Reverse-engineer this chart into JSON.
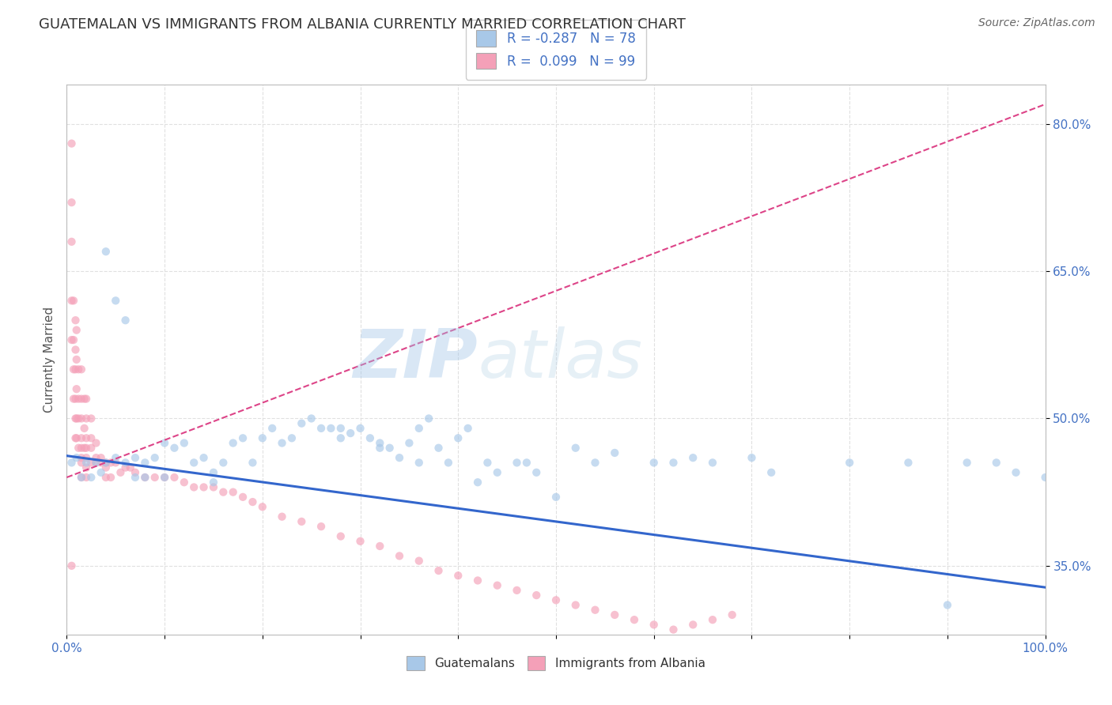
{
  "title": "GUATEMALAN VS IMMIGRANTS FROM ALBANIA CURRENTLY MARRIED CORRELATION CHART",
  "source": "Source: ZipAtlas.com",
  "ylabel": "Currently Married",
  "watermark": "ZIPatlas",
  "xlim": [
    0.0,
    1.0
  ],
  "ylim": [
    0.28,
    0.84
  ],
  "xticks": [
    0.0,
    0.1,
    0.2,
    0.3,
    0.4,
    0.5,
    0.6,
    0.7,
    0.8,
    0.9,
    1.0
  ],
  "xticklabels": [
    "0.0%",
    "",
    "",
    "",
    "",
    "",
    "",
    "",
    "",
    "",
    "100.0%"
  ],
  "ytick_positions": [
    0.35,
    0.5,
    0.65,
    0.8
  ],
  "ytick_labels": [
    "35.0%",
    "50.0%",
    "65.0%",
    "80.0%"
  ],
  "blue_color": "#a8c8e8",
  "pink_color": "#f4a0b8",
  "blue_line_color": "#3366cc",
  "pink_line_color": "#dd4488",
  "blue_scatter_x": [
    0.005,
    0.01,
    0.015,
    0.02,
    0.025,
    0.03,
    0.035,
    0.04,
    0.04,
    0.05,
    0.05,
    0.06,
    0.06,
    0.07,
    0.07,
    0.08,
    0.08,
    0.09,
    0.1,
    0.1,
    0.11,
    0.12,
    0.13,
    0.14,
    0.15,
    0.15,
    0.16,
    0.17,
    0.18,
    0.19,
    0.2,
    0.21,
    0.22,
    0.23,
    0.24,
    0.25,
    0.26,
    0.27,
    0.28,
    0.29,
    0.3,
    0.31,
    0.32,
    0.33,
    0.34,
    0.35,
    0.36,
    0.37,
    0.38,
    0.39,
    0.4,
    0.41,
    0.42,
    0.43,
    0.44,
    0.46,
    0.47,
    0.48,
    0.5,
    0.52,
    0.54,
    0.56,
    0.6,
    0.62,
    0.64,
    0.66,
    0.7,
    0.72,
    0.8,
    0.86,
    0.9,
    0.92,
    0.95,
    0.97,
    1.0,
    0.28,
    0.32,
    0.36
  ],
  "blue_scatter_y": [
    0.455,
    0.46,
    0.44,
    0.455,
    0.44,
    0.455,
    0.445,
    0.67,
    0.455,
    0.62,
    0.46,
    0.6,
    0.455,
    0.46,
    0.44,
    0.455,
    0.44,
    0.46,
    0.475,
    0.44,
    0.47,
    0.475,
    0.455,
    0.46,
    0.445,
    0.435,
    0.455,
    0.475,
    0.48,
    0.455,
    0.48,
    0.49,
    0.475,
    0.48,
    0.495,
    0.5,
    0.49,
    0.49,
    0.49,
    0.485,
    0.49,
    0.48,
    0.475,
    0.47,
    0.46,
    0.475,
    0.49,
    0.5,
    0.47,
    0.455,
    0.48,
    0.49,
    0.435,
    0.455,
    0.445,
    0.455,
    0.455,
    0.445,
    0.42,
    0.47,
    0.455,
    0.465,
    0.455,
    0.455,
    0.46,
    0.455,
    0.46,
    0.445,
    0.455,
    0.455,
    0.31,
    0.455,
    0.455,
    0.445,
    0.44,
    0.48,
    0.47,
    0.455
  ],
  "pink_scatter_x": [
    0.005,
    0.005,
    0.005,
    0.005,
    0.005,
    0.007,
    0.007,
    0.007,
    0.007,
    0.009,
    0.009,
    0.009,
    0.009,
    0.009,
    0.009,
    0.01,
    0.01,
    0.01,
    0.01,
    0.01,
    0.012,
    0.012,
    0.012,
    0.012,
    0.015,
    0.015,
    0.015,
    0.015,
    0.015,
    0.015,
    0.015,
    0.015,
    0.018,
    0.018,
    0.018,
    0.02,
    0.02,
    0.02,
    0.02,
    0.02,
    0.02,
    0.02,
    0.025,
    0.025,
    0.025,
    0.025,
    0.03,
    0.03,
    0.03,
    0.035,
    0.035,
    0.04,
    0.04,
    0.04,
    0.045,
    0.045,
    0.05,
    0.055,
    0.06,
    0.065,
    0.07,
    0.08,
    0.09,
    0.1,
    0.11,
    0.12,
    0.13,
    0.14,
    0.15,
    0.16,
    0.17,
    0.18,
    0.19,
    0.2,
    0.22,
    0.24,
    0.26,
    0.28,
    0.3,
    0.32,
    0.34,
    0.36,
    0.38,
    0.4,
    0.42,
    0.44,
    0.46,
    0.48,
    0.5,
    0.52,
    0.54,
    0.56,
    0.58,
    0.6,
    0.62,
    0.64,
    0.66,
    0.68,
    0.005
  ],
  "pink_scatter_y": [
    0.78,
    0.72,
    0.68,
    0.62,
    0.58,
    0.62,
    0.58,
    0.55,
    0.52,
    0.6,
    0.57,
    0.55,
    0.52,
    0.5,
    0.48,
    0.59,
    0.56,
    0.53,
    0.5,
    0.48,
    0.55,
    0.52,
    0.5,
    0.47,
    0.55,
    0.52,
    0.5,
    0.48,
    0.47,
    0.46,
    0.455,
    0.44,
    0.52,
    0.49,
    0.47,
    0.52,
    0.5,
    0.48,
    0.47,
    0.46,
    0.45,
    0.44,
    0.5,
    0.48,
    0.47,
    0.455,
    0.475,
    0.46,
    0.455,
    0.46,
    0.455,
    0.455,
    0.45,
    0.44,
    0.455,
    0.44,
    0.455,
    0.445,
    0.45,
    0.45,
    0.445,
    0.44,
    0.44,
    0.44,
    0.44,
    0.435,
    0.43,
    0.43,
    0.43,
    0.425,
    0.425,
    0.42,
    0.415,
    0.41,
    0.4,
    0.395,
    0.39,
    0.38,
    0.375,
    0.37,
    0.36,
    0.355,
    0.345,
    0.34,
    0.335,
    0.33,
    0.325,
    0.32,
    0.315,
    0.31,
    0.305,
    0.3,
    0.295,
    0.29,
    0.285,
    0.29,
    0.295,
    0.3,
    0.35
  ],
  "blue_trend_x": [
    0.0,
    1.0
  ],
  "blue_trend_y": [
    0.462,
    0.328
  ],
  "pink_trend_x": [
    0.0,
    1.0
  ],
  "pink_trend_y": [
    0.44,
    0.82
  ],
  "bg_color": "#ffffff",
  "grid_color": "#e0e0e0",
  "title_fontsize": 13,
  "label_fontsize": 11,
  "tick_fontsize": 11,
  "scatter_size": 55,
  "scatter_alpha": 0.65
}
